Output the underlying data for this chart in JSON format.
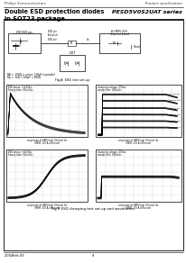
{
  "header_left": "Philips Semiconductors",
  "header_right": "Product specification",
  "title_left": "Double ESD protection diodes\nin SOT23 package",
  "title_right": "PESD5V0S2UAT series",
  "footer_left": "2004Feb 09",
  "footer_center": "9",
  "caption": "Fig.9 ESD clamping test set-up and waveforms",
  "bg_color": "#ffffff"
}
